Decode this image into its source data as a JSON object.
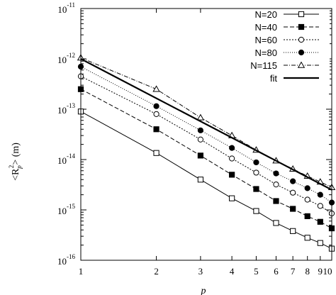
{
  "chart_data": {
    "type": "line",
    "title": "",
    "xlabel": "p",
    "ylabel": "<R_p^2> (m)",
    "ylabel_parts": {
      "open": "<R",
      "sub": "p",
      "sup": "2",
      "close": "> (m)"
    },
    "x_scale": "log",
    "y_scale": "log",
    "xlim": [
      1,
      10
    ],
    "ylim": [
      1e-16,
      1e-11
    ],
    "x_ticks": [
      {
        "value": 1,
        "label": "1"
      },
      {
        "value": 2,
        "label": "2"
      },
      {
        "value": 3,
        "label": "3"
      },
      {
        "value": 4,
        "label": "4"
      },
      {
        "value": 5,
        "label": "5"
      },
      {
        "value": 6,
        "label": "6"
      },
      {
        "value": 7,
        "label": "7"
      },
      {
        "value": 8,
        "label": "8"
      },
      {
        "value": 9,
        "label": "9"
      },
      {
        "value": 10,
        "label": "10"
      }
    ],
    "y_ticks": [
      {
        "value": 1e-16,
        "base": "10",
        "exp": "-16"
      },
      {
        "value": 1e-15,
        "base": "10",
        "exp": "-15"
      },
      {
        "value": 1e-14,
        "base": "10",
        "exp": "-14"
      },
      {
        "value": 1e-13,
        "base": "10",
        "exp": "-13"
      },
      {
        "value": 1e-12,
        "base": "10",
        "exp": "-12"
      },
      {
        "value": 1e-11,
        "base": "10",
        "exp": "-11"
      }
    ],
    "legend_position": "top-right",
    "series": [
      {
        "name": "N=20",
        "marker": "open-square",
        "dash": "none",
        "stroke_width": 1,
        "x": [
          1,
          2,
          3,
          4,
          5,
          6,
          7,
          8,
          9,
          10
        ],
        "y": [
          9e-14,
          1.35e-14,
          4e-15,
          1.7e-15,
          9.5e-16,
          5.5e-16,
          3.8e-16,
          2.8e-16,
          2.2e-16,
          1.7e-16
        ]
      },
      {
        "name": "N=40",
        "marker": "filled-square",
        "dash": "6,3",
        "stroke_width": 1,
        "x": [
          1,
          2,
          3,
          4,
          5,
          6,
          7,
          8,
          9,
          10
        ],
        "y": [
          2.5e-13,
          4e-14,
          1.2e-14,
          5e-15,
          2.6e-15,
          1.5e-15,
          1.05e-15,
          7.5e-16,
          5.8e-16,
          4.3e-16
        ]
      },
      {
        "name": "N=60",
        "marker": "open-circle",
        "dash": "2,2",
        "stroke_width": 1,
        "x": [
          1,
          2,
          3,
          4,
          5,
          6,
          7,
          8,
          9,
          10
        ],
        "y": [
          4.5e-13,
          8e-14,
          2.5e-14,
          1.05e-14,
          5.5e-15,
          3.2e-15,
          2.2e-15,
          1.6e-15,
          1.2e-15,
          8.5e-16
        ]
      },
      {
        "name": "N=80",
        "marker": "filled-circle",
        "dash": "1,2",
        "stroke_width": 1,
        "x": [
          1,
          2,
          3,
          4,
          5,
          6,
          7,
          8,
          9,
          10
        ],
        "y": [
          7e-13,
          1.15e-13,
          3.8e-14,
          1.7e-14,
          8.8e-15,
          5.3e-15,
          3.7e-15,
          2.7e-15,
          2e-15,
          1.4e-15
        ]
      },
      {
        "name": "N=115",
        "marker": "open-triangle",
        "dash": "6,2,1,2",
        "stroke_width": 1,
        "x": [
          1,
          2,
          3,
          4,
          5,
          6,
          7,
          8,
          9,
          10
        ],
        "y": [
          1.05e-12,
          2.5e-13,
          6.8e-14,
          3e-14,
          1.55e-14,
          9.5e-15,
          6.5e-15,
          4.7e-15,
          3.6e-15,
          2.8e-15
        ]
      },
      {
        "name": "fit",
        "marker": "none",
        "dash": "none",
        "stroke_width": 2.2,
        "x": [
          1,
          10
        ],
        "y": [
          1e-12,
          2.5e-15
        ]
      }
    ]
  }
}
